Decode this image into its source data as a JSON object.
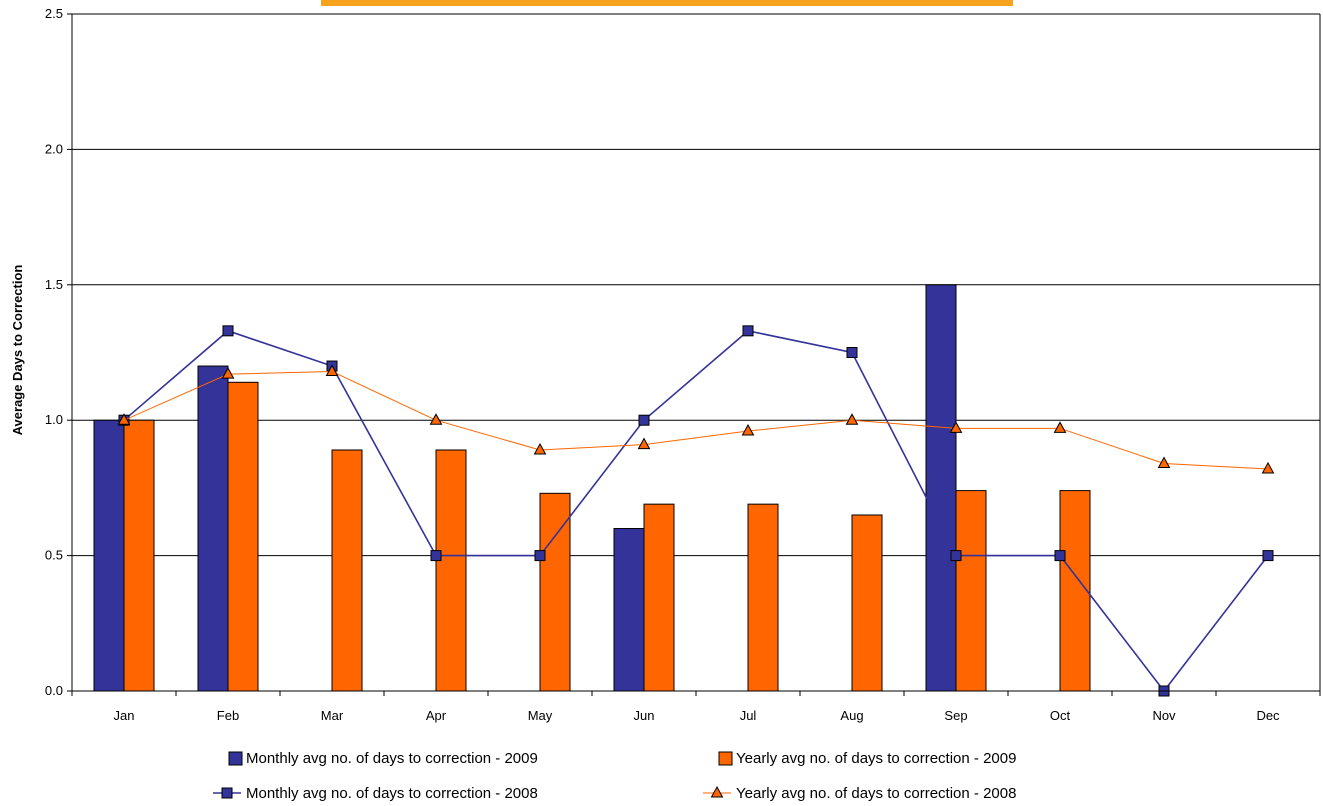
{
  "chart_data": {
    "type": "bar",
    "categories": [
      "Jan",
      "Feb",
      "Mar",
      "Apr",
      "May",
      "Jun",
      "Jul",
      "Aug",
      "Sep",
      "Oct",
      "Nov",
      "Dec"
    ],
    "ylabel": "Average Days to Correction",
    "ylim": [
      0,
      2.5
    ],
    "yticks": [
      "0.0",
      "0.5",
      "1.0",
      "1.5",
      "2.0",
      "2.5"
    ],
    "grid": true,
    "legend_position": "bottom",
    "series": [
      {
        "name": "Monthly avg no. of days to correction - 2009",
        "type": "bar",
        "color": "#333399",
        "values": [
          1.0,
          1.2,
          null,
          null,
          null,
          0.6,
          null,
          null,
          1.5,
          null,
          null,
          null
        ]
      },
      {
        "name": "Yearly avg no. of days to correction - 2009",
        "type": "bar",
        "color": "#ff6600",
        "values": [
          1.0,
          1.14,
          0.89,
          0.89,
          0.73,
          0.69,
          0.69,
          0.65,
          0.74,
          0.74,
          null,
          null
        ]
      },
      {
        "name": "Monthly avg no. of days to correction - 2008",
        "type": "line",
        "marker": "square",
        "color": "#333399",
        "values": [
          1.0,
          1.33,
          1.2,
          0.5,
          0.5,
          1.0,
          1.33,
          1.25,
          0.5,
          0.5,
          0.0,
          0.5
        ]
      },
      {
        "name": "Yearly avg no. of days to correction - 2008",
        "type": "line",
        "marker": "triangle",
        "color": "#ff6600",
        "values": [
          1.0,
          1.17,
          1.18,
          1.0,
          0.89,
          0.91,
          0.96,
          1.0,
          0.97,
          0.97,
          0.84,
          0.82
        ]
      }
    ]
  },
  "title_banner": {
    "color": "#f7a21b"
  }
}
